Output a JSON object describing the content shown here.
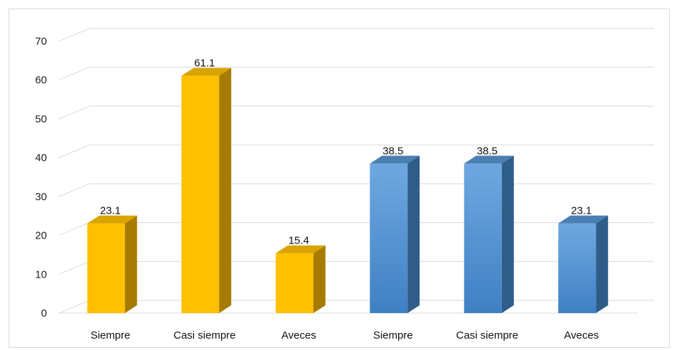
{
  "chart_data": {
    "type": "bar",
    "style": "3d-column",
    "title": "",
    "xlabel": "",
    "ylabel": "",
    "ylim": [
      0,
      70
    ],
    "yticks": [
      0,
      10,
      20,
      30,
      40,
      50,
      60,
      70
    ],
    "grid": true,
    "legend": "none",
    "categories": [
      "Siempre",
      "Casi siempre",
      "Aveces",
      "Siempre",
      "Casi siempre",
      "Aveces"
    ],
    "values": [
      23.1,
      61.1,
      15.4,
      38.5,
      38.5,
      23.1
    ],
    "value_labels": [
      "23.1",
      "61.1",
      "15.4",
      "38.5",
      "38.5",
      "23.1"
    ],
    "groups": [
      {
        "color": "#ffc000",
        "side_color": "#a67c00",
        "top_color": "#d9a300",
        "bars": [
          0,
          1,
          2
        ]
      },
      {
        "color": "#5b9bd5",
        "side_color": "#2f5d8a",
        "top_color": "#4a7fb3",
        "bars": [
          3,
          4,
          5
        ]
      }
    ]
  }
}
